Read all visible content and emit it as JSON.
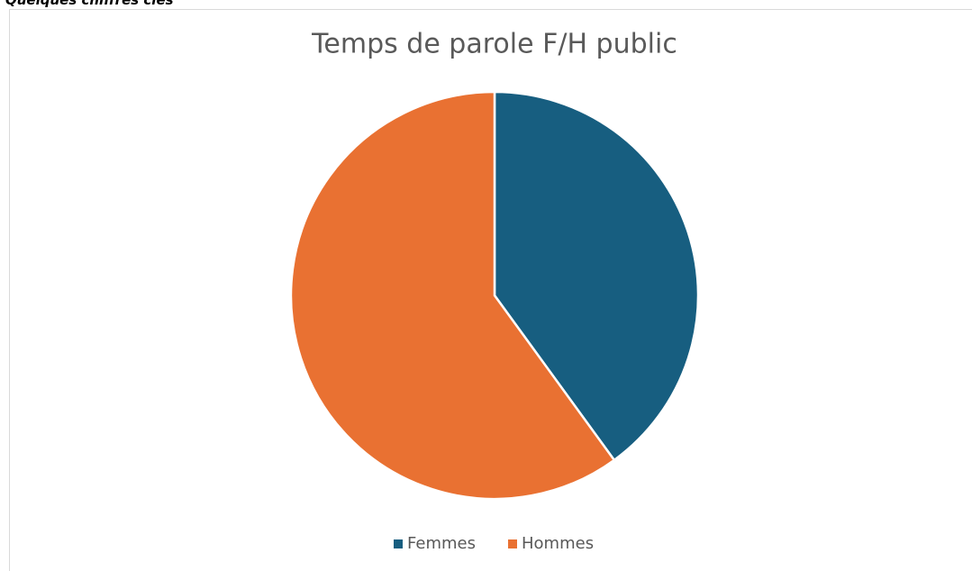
{
  "header": {
    "text": "Quelques chiffres clés"
  },
  "chart_data": {
    "type": "pie",
    "title": "Temps de parole F/H public",
    "categories": [
      "Femmes",
      "Hommes"
    ],
    "values": [
      40,
      60
    ],
    "colors": [
      "#175e80",
      "#e97132"
    ],
    "legend": "bottom"
  }
}
